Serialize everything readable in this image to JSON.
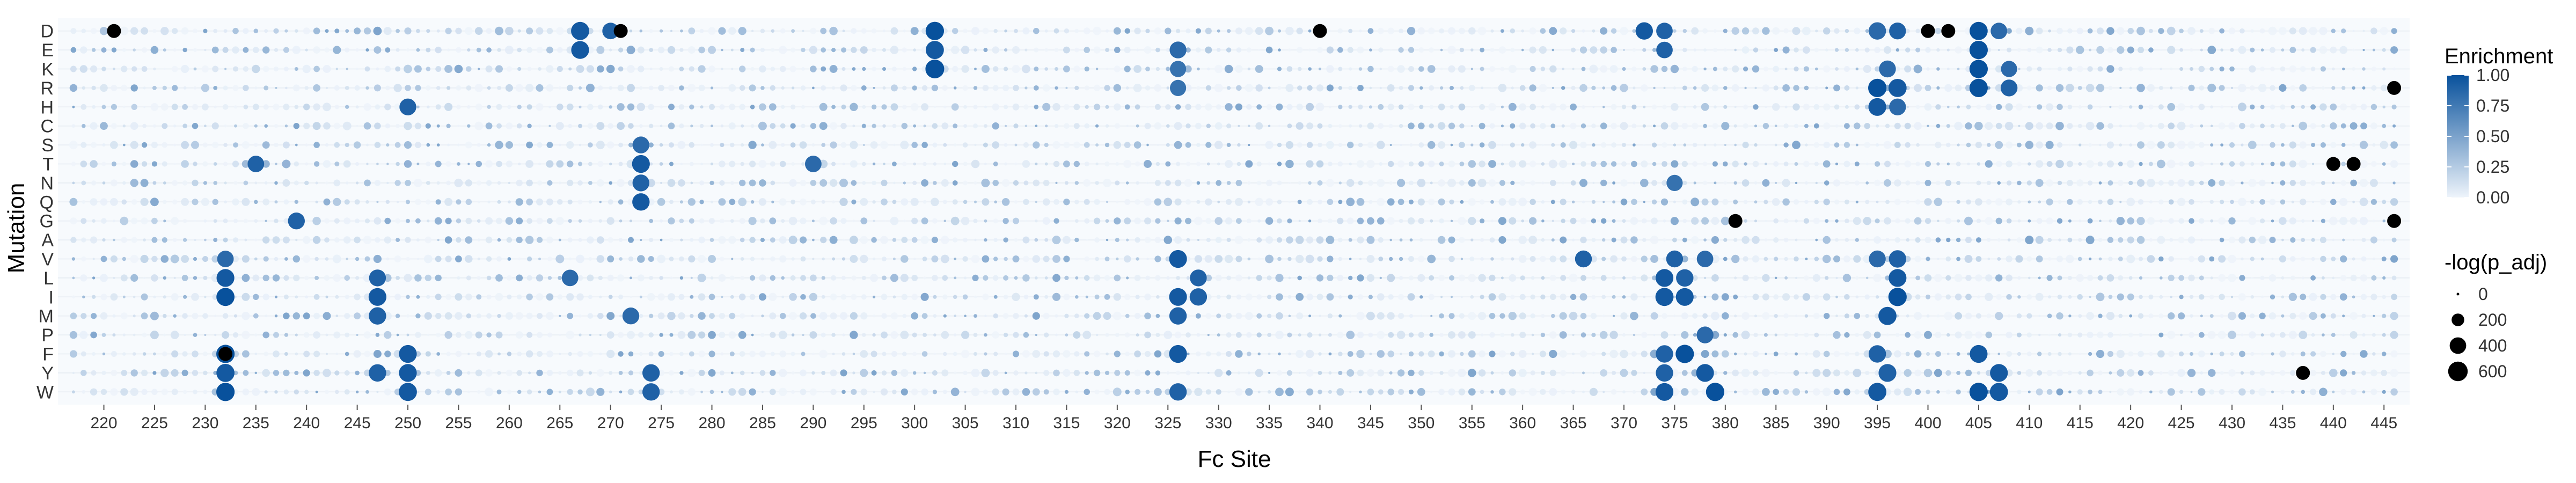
{
  "chart_data": {
    "type": "scatter",
    "subtype": "dot-matrix",
    "xlabel": "Fc Site",
    "ylabel": "Mutation",
    "x_range": [
      216,
      447
    ],
    "x_ticks": [
      220,
      225,
      230,
      235,
      240,
      245,
      250,
      255,
      260,
      265,
      270,
      275,
      280,
      285,
      290,
      295,
      300,
      305,
      310,
      315,
      320,
      325,
      330,
      335,
      340,
      345,
      350,
      355,
      360,
      365,
      370,
      375,
      380,
      385,
      390,
      395,
      400,
      405,
      410,
      415,
      420,
      425,
      430,
      435,
      440,
      445
    ],
    "mutations": [
      "D",
      "E",
      "K",
      "R",
      "H",
      "C",
      "S",
      "T",
      "N",
      "Q",
      "G",
      "A",
      "V",
      "L",
      "I",
      "M",
      "P",
      "F",
      "Y",
      "W"
    ],
    "color_legend": {
      "title": "Enrichment",
      "ticks": [
        "1.00",
        "0.75",
        "0.50",
        "0.25",
        "0.00"
      ],
      "tick_values": [
        1.0,
        0.75,
        0.5,
        0.25,
        0.0
      ],
      "low_color": "#eef4fb",
      "high_color": "#08519c"
    },
    "size_legend": {
      "title": "-log(p_adj)",
      "labels": [
        "0",
        "200",
        "400",
        "600"
      ],
      "values": [
        0,
        200,
        400,
        600
      ]
    },
    "sig_color": "#000000",
    "points": [
      {
        "x": 267,
        "m": "D",
        "e": 0.95,
        "p": 500
      },
      {
        "x": 270,
        "m": "D",
        "e": 0.9,
        "p": 400
      },
      {
        "x": 302,
        "m": "D",
        "e": 1.0,
        "p": 520
      },
      {
        "x": 372,
        "m": "D",
        "e": 0.95,
        "p": 450
      },
      {
        "x": 374,
        "m": "D",
        "e": 0.9,
        "p": 400
      },
      {
        "x": 395,
        "m": "D",
        "e": 0.85,
        "p": 450
      },
      {
        "x": 397,
        "m": "D",
        "e": 0.9,
        "p": 420
      },
      {
        "x": 405,
        "m": "D",
        "e": 1.0,
        "p": 500
      },
      {
        "x": 407,
        "m": "D",
        "e": 0.85,
        "p": 400
      },
      {
        "x": 267,
        "m": "E",
        "e": 0.95,
        "p": 480
      },
      {
        "x": 302,
        "m": "E",
        "e": 0.95,
        "p": 500
      },
      {
        "x": 326,
        "m": "E",
        "e": 0.85,
        "p": 420
      },
      {
        "x": 374,
        "m": "E",
        "e": 0.9,
        "p": 400
      },
      {
        "x": 405,
        "m": "E",
        "e": 1.0,
        "p": 520
      },
      {
        "x": 302,
        "m": "K",
        "e": 1.0,
        "p": 550
      },
      {
        "x": 326,
        "m": "K",
        "e": 0.8,
        "p": 380
      },
      {
        "x": 396,
        "m": "K",
        "e": 0.85,
        "p": 420
      },
      {
        "x": 405,
        "m": "K",
        "e": 1.0,
        "p": 520
      },
      {
        "x": 408,
        "m": "K",
        "e": 0.85,
        "p": 380
      },
      {
        "x": 326,
        "m": "R",
        "e": 0.8,
        "p": 380
      },
      {
        "x": 395,
        "m": "R",
        "e": 1.0,
        "p": 520
      },
      {
        "x": 397,
        "m": "R",
        "e": 0.95,
        "p": 500
      },
      {
        "x": 405,
        "m": "R",
        "e": 1.0,
        "p": 520
      },
      {
        "x": 408,
        "m": "R",
        "e": 0.9,
        "p": 420
      },
      {
        "x": 250,
        "m": "H",
        "e": 0.9,
        "p": 420
      },
      {
        "x": 395,
        "m": "H",
        "e": 0.95,
        "p": 480
      },
      {
        "x": 397,
        "m": "H",
        "e": 0.85,
        "p": 420
      },
      {
        "x": 235,
        "m": "T",
        "e": 0.9,
        "p": 400
      },
      {
        "x": 273,
        "m": "T",
        "e": 0.95,
        "p": 480
      },
      {
        "x": 273,
        "m": "S",
        "e": 0.85,
        "p": 420
      },
      {
        "x": 290,
        "m": "T",
        "e": 0.85,
        "p": 400
      },
      {
        "x": 273,
        "m": "N",
        "e": 0.9,
        "p": 420
      },
      {
        "x": 375,
        "m": "N",
        "e": 0.8,
        "p": 380
      },
      {
        "x": 273,
        "m": "Q",
        "e": 0.95,
        "p": 450
      },
      {
        "x": 239,
        "m": "G",
        "e": 0.9,
        "p": 420
      },
      {
        "x": 232,
        "m": "V",
        "e": 0.85,
        "p": 400
      },
      {
        "x": 326,
        "m": "V",
        "e": 0.95,
        "p": 480
      },
      {
        "x": 366,
        "m": "V",
        "e": 0.9,
        "p": 420
      },
      {
        "x": 375,
        "m": "V",
        "e": 0.9,
        "p": 420
      },
      {
        "x": 378,
        "m": "V",
        "e": 0.85,
        "p": 400
      },
      {
        "x": 395,
        "m": "V",
        "e": 0.85,
        "p": 420
      },
      {
        "x": 397,
        "m": "V",
        "e": 0.9,
        "p": 450
      },
      {
        "x": 232,
        "m": "L",
        "e": 0.95,
        "p": 480
      },
      {
        "x": 247,
        "m": "L",
        "e": 0.9,
        "p": 420
      },
      {
        "x": 266,
        "m": "L",
        "e": 0.85,
        "p": 400
      },
      {
        "x": 328,
        "m": "L",
        "e": 0.9,
        "p": 420
      },
      {
        "x": 374,
        "m": "L",
        "e": 0.95,
        "p": 480
      },
      {
        "x": 376,
        "m": "L",
        "e": 0.9,
        "p": 450
      },
      {
        "x": 397,
        "m": "L",
        "e": 0.95,
        "p": 480
      },
      {
        "x": 232,
        "m": "I",
        "e": 1.0,
        "p": 500
      },
      {
        "x": 247,
        "m": "I",
        "e": 0.95,
        "p": 480
      },
      {
        "x": 326,
        "m": "I",
        "e": 0.95,
        "p": 480
      },
      {
        "x": 328,
        "m": "I",
        "e": 0.9,
        "p": 450
      },
      {
        "x": 374,
        "m": "I",
        "e": 0.95,
        "p": 500
      },
      {
        "x": 376,
        "m": "I",
        "e": 0.95,
        "p": 480
      },
      {
        "x": 397,
        "m": "I",
        "e": 1.0,
        "p": 520
      },
      {
        "x": 247,
        "m": "M",
        "e": 0.9,
        "p": 450
      },
      {
        "x": 272,
        "m": "M",
        "e": 0.85,
        "p": 420
      },
      {
        "x": 326,
        "m": "M",
        "e": 0.9,
        "p": 450
      },
      {
        "x": 396,
        "m": "M",
        "e": 0.95,
        "p": 500
      },
      {
        "x": 378,
        "m": "P",
        "e": 0.85,
        "p": 420
      },
      {
        "x": 232,
        "m": "F",
        "e": 1.0,
        "p": 520
      },
      {
        "x": 250,
        "m": "F",
        "e": 0.95,
        "p": 480
      },
      {
        "x": 326,
        "m": "F",
        "e": 0.95,
        "p": 480
      },
      {
        "x": 374,
        "m": "F",
        "e": 0.9,
        "p": 450
      },
      {
        "x": 376,
        "m": "F",
        "e": 1.0,
        "p": 520
      },
      {
        "x": 395,
        "m": "F",
        "e": 0.9,
        "p": 450
      },
      {
        "x": 405,
        "m": "F",
        "e": 0.95,
        "p": 480
      },
      {
        "x": 232,
        "m": "Y",
        "e": 0.95,
        "p": 500
      },
      {
        "x": 247,
        "m": "Y",
        "e": 0.9,
        "p": 450
      },
      {
        "x": 250,
        "m": "Y",
        "e": 0.95,
        "p": 480
      },
      {
        "x": 274,
        "m": "Y",
        "e": 0.9,
        "p": 450
      },
      {
        "x": 374,
        "m": "Y",
        "e": 0.9,
        "p": 450
      },
      {
        "x": 378,
        "m": "Y",
        "e": 0.95,
        "p": 480
      },
      {
        "x": 396,
        "m": "Y",
        "e": 0.9,
        "p": 480
      },
      {
        "x": 407,
        "m": "Y",
        "e": 0.95,
        "p": 480
      },
      {
        "x": 232,
        "m": "W",
        "e": 1.0,
        "p": 520
      },
      {
        "x": 250,
        "m": "W",
        "e": 0.95,
        "p": 500
      },
      {
        "x": 274,
        "m": "W",
        "e": 0.9,
        "p": 450
      },
      {
        "x": 326,
        "m": "W",
        "e": 0.9,
        "p": 450
      },
      {
        "x": 374,
        "m": "W",
        "e": 0.95,
        "p": 480
      },
      {
        "x": 379,
        "m": "W",
        "e": 1.0,
        "p": 520
      },
      {
        "x": 395,
        "m": "W",
        "e": 0.95,
        "p": 500
      },
      {
        "x": 405,
        "m": "W",
        "e": 1.0,
        "p": 520
      },
      {
        "x": 407,
        "m": "W",
        "e": 0.95,
        "p": 500
      },
      {
        "x": 221,
        "m": "D",
        "e": null,
        "p": 260
      },
      {
        "x": 271,
        "m": "D",
        "e": null,
        "p": 260
      },
      {
        "x": 340,
        "m": "D",
        "e": null,
        "p": 260
      },
      {
        "x": 400,
        "m": "D",
        "e": null,
        "p": 260
      },
      {
        "x": 402,
        "m": "D",
        "e": null,
        "p": 260
      },
      {
        "x": 232,
        "m": "F",
        "e": null,
        "p": 260
      },
      {
        "x": 381,
        "m": "G",
        "e": null,
        "p": 260
      },
      {
        "x": 440,
        "m": "T",
        "e": null,
        "p": 260
      },
      {
        "x": 442,
        "m": "T",
        "e": null,
        "p": 260
      },
      {
        "x": 446,
        "m": "R",
        "e": null,
        "p": 260
      },
      {
        "x": 446,
        "m": "G",
        "e": null,
        "p": 260
      },
      {
        "x": 437,
        "m": "Y",
        "e": null,
        "p": 260
      }
    ]
  }
}
